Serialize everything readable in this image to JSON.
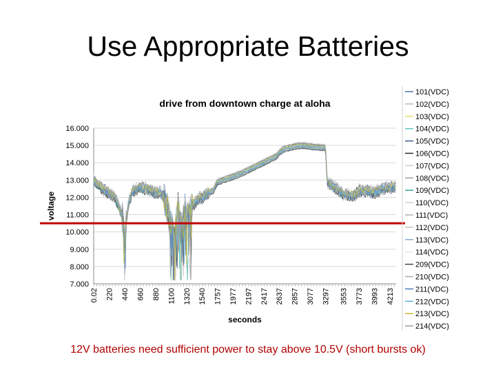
{
  "slide": {
    "title": "Use Appropriate Batteries",
    "caption": "12V batteries need sufficient power to stay above 10.5V (short bursts ok)"
  },
  "colors": {
    "threshold": "#c00000",
    "grid": "#d9d9d9",
    "caption": "#b00000"
  },
  "chart_data": {
    "type": "line",
    "title": "drive from downtown charge at aloha",
    "xlabel": "seconds",
    "ylabel": "voltage",
    "ylim": [
      7.0,
      16.0
    ],
    "yticks": [
      "16.000",
      "15.000",
      "14.000",
      "13.000",
      "12.000",
      "11.000",
      "10.000",
      "9.000",
      "8.000",
      "7.000"
    ],
    "xlim": [
      0,
      4300
    ],
    "x_tick_values": [
      0.02,
      220,
      440,
      660,
      880,
      1100,
      1320,
      1540,
      1757,
      1977,
      2197,
      2417,
      2637,
      2857,
      3077,
      3297,
      3553,
      3773,
      3993,
      4213
    ],
    "x_tick_labels": [
      "0.02",
      "220",
      "440",
      "660",
      "880",
      "1100",
      "1320",
      "1540",
      "1757",
      "1977",
      "2197",
      "2417",
      "2637",
      "2857",
      "3077",
      "3297",
      "3553",
      "3773",
      "3993",
      "4213"
    ],
    "threshold_line": {
      "y": 10.5,
      "description": "10.5V minimum"
    },
    "profile": {
      "x": [
        0,
        100,
        200,
        300,
        350,
        400,
        420,
        440,
        460,
        500,
        560,
        660,
        760,
        880,
        950,
        1000,
        1100,
        1150,
        1200,
        1250,
        1300,
        1320,
        1400,
        1500,
        1540,
        1600,
        1700,
        1757,
        1900,
        2100,
        2300,
        2500,
        2600,
        2637,
        2700,
        2800,
        2900,
        3000,
        3100,
        3250,
        3297,
        3320,
        3400,
        3553,
        3700,
        3773,
        3900,
        3993,
        4100,
        4213,
        4300
      ],
      "y": [
        13.0,
        12.6,
        12.3,
        12.0,
        11.6,
        11.0,
        10.6,
        9.2,
        10.6,
        11.8,
        12.4,
        12.6,
        12.5,
        12.3,
        12.3,
        12.0,
        10.5,
        9.6,
        11.6,
        10.0,
        11.6,
        10.6,
        11.5,
        12.0,
        12.0,
        12.2,
        12.4,
        12.9,
        13.1,
        13.4,
        13.8,
        14.2,
        14.4,
        14.6,
        14.8,
        14.9,
        15.0,
        15.0,
        14.95,
        14.9,
        14.9,
        12.9,
        12.7,
        12.2,
        12.1,
        12.4,
        12.4,
        12.3,
        12.5,
        12.6,
        12.6
      ]
    },
    "series": [
      {
        "name": "101(VDC)",
        "color": "#4f6fa0"
      },
      {
        "name": "102(VDC)",
        "color": "#bbbbbb"
      },
      {
        "name": "103(VDC)",
        "color": "#e0e070"
      },
      {
        "name": "104(VDC)",
        "color": "#5bc8c0"
      },
      {
        "name": "105(VDC)",
        "color": "#3c5a8c"
      },
      {
        "name": "106(VDC)",
        "color": "#2a2a2a"
      },
      {
        "name": "107(VDC)",
        "color": "#c8c8c8"
      },
      {
        "name": "108(VDC)",
        "color": "#a0a0a0"
      },
      {
        "name": "109(VDC)",
        "color": "#3aa8a0"
      },
      {
        "name": "110(VDC)",
        "color": "#d0d0d0"
      },
      {
        "name": "111(VDC)",
        "color": "#b0b0b0"
      },
      {
        "name": "112(VDC)",
        "color": "#c0c0c0"
      },
      {
        "name": "113(VDC)",
        "color": "#88aacc"
      },
      {
        "name": "114(VDC)",
        "color": "#e8e8e8"
      },
      {
        "name": "209(VDC)",
        "color": "#444444"
      },
      {
        "name": "210(VDC)",
        "color": "#aaaaaa"
      },
      {
        "name": "211(VDC)",
        "color": "#4a78b8"
      },
      {
        "name": "212(VDC)",
        "color": "#60b0d8"
      },
      {
        "name": "213(VDC)",
        "color": "#c8c030"
      },
      {
        "name": "214(VDC)",
        "color": "#999999"
      }
    ]
  }
}
